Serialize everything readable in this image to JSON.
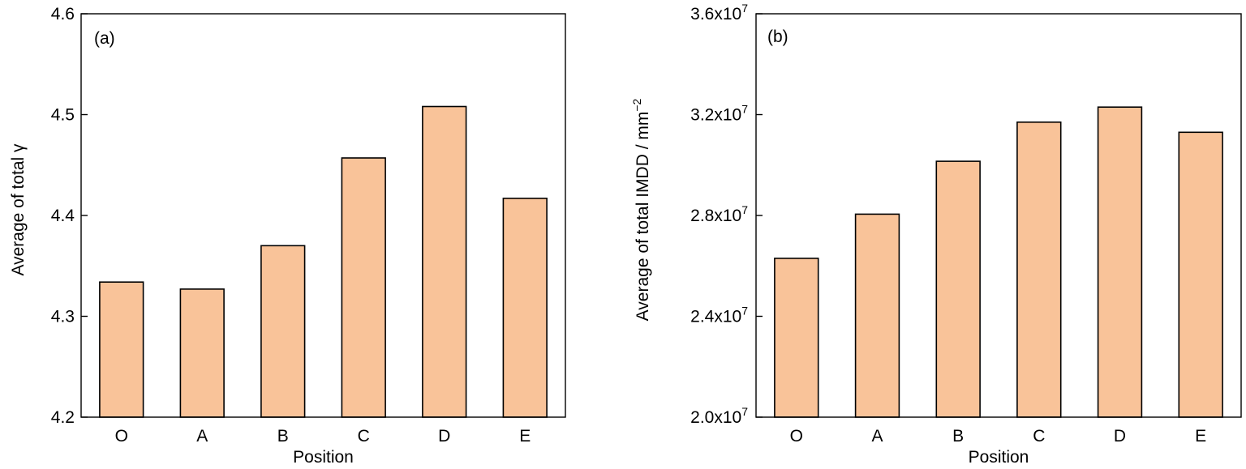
{
  "chart_data": [
    {
      "type": "bar",
      "panel_label": "(a)",
      "categories": [
        "O",
        "A",
        "B",
        "C",
        "D",
        "E"
      ],
      "values": [
        4.334,
        4.327,
        4.37,
        4.457,
        4.508,
        4.417
      ],
      "xlabel": "Position",
      "ylabel": "Average of total γ",
      "ylim": [
        4.2,
        4.6
      ],
      "yticks": [
        4.2,
        4.3,
        4.4,
        4.5,
        4.6
      ],
      "ytick_labels": [
        "4.2",
        "4.3",
        "4.4",
        "4.5",
        "4.6"
      ],
      "bar_color": "#f9c399",
      "grid": false
    },
    {
      "type": "bar",
      "panel_label": "(b)",
      "categories": [
        "O",
        "A",
        "B",
        "C",
        "D",
        "E"
      ],
      "values": [
        26300000,
        28050000,
        30150000,
        31700000,
        32300000,
        31300000
      ],
      "xlabel": "Position",
      "ylabel": "Average of total IMDD / mm",
      "ylabel_superscript": "−2",
      "ylim": [
        20000000,
        36000000
      ],
      "yticks": [
        20000000,
        24000000,
        28000000,
        32000000,
        36000000
      ],
      "ytick_labels": [
        {
          "mantissa": "2.0x10",
          "exp": "7"
        },
        {
          "mantissa": "2.4x10",
          "exp": "7"
        },
        {
          "mantissa": "2.8x10",
          "exp": "7"
        },
        {
          "mantissa": "3.2x10",
          "exp": "7"
        },
        {
          "mantissa": "3.6x10",
          "exp": "7"
        }
      ],
      "bar_color": "#f9c399",
      "grid": false
    }
  ]
}
